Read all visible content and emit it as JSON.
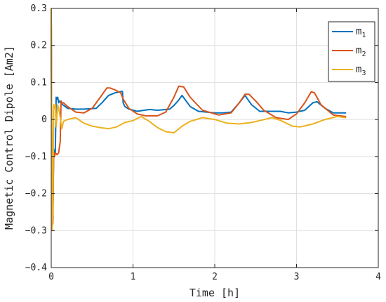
{
  "chart_data": {
    "type": "line",
    "title": "",
    "xlabel": "Time [h]",
    "ylabel": "Magnetic Control Dipole [Am2]",
    "xlim": [
      0,
      4
    ],
    "ylim": [
      -0.4,
      0.3
    ],
    "xticks": [
      "0",
      "1",
      "2",
      "3",
      "4"
    ],
    "yticks": [
      "-0.4",
      "-0.3",
      "-0.2",
      "-0.1",
      "0",
      "0.1",
      "0.2",
      "0.3"
    ],
    "grid": true,
    "legend_position": "top-right",
    "series": [
      {
        "name": "m",
        "subscript": "1",
        "color": "#0072BD",
        "x": [
          0,
          0.01,
          0.02,
          0.03,
          0.04,
          0.05,
          0.06,
          0.07,
          0.08,
          0.09,
          0.1,
          0.12,
          0.14,
          0.17,
          0.2,
          0.3,
          0.4,
          0.55,
          0.62,
          0.7,
          0.78,
          0.86,
          0.87,
          0.88,
          0.9,
          0.95,
          1.05,
          1.2,
          1.3,
          1.45,
          1.5,
          1.55,
          1.6,
          1.7,
          1.8,
          2.0,
          2.1,
          2.2,
          2.3,
          2.37,
          2.45,
          2.55,
          2.7,
          2.8,
          2.9,
          3.0,
          3.1,
          3.2,
          3.25,
          3.35,
          3.45,
          3.6
        ],
        "y": [
          0.28,
          -0.28,
          -0.27,
          -0.08,
          -0.09,
          -0.09,
          0.06,
          0.055,
          0.06,
          0.045,
          0.05,
          0.045,
          0.04,
          0.035,
          0.03,
          0.028,
          0.028,
          0.03,
          0.045,
          0.065,
          0.072,
          0.076,
          0.076,
          0.045,
          0.035,
          0.028,
          0.022,
          0.027,
          0.025,
          0.028,
          0.038,
          0.05,
          0.065,
          0.035,
          0.022,
          0.018,
          0.018,
          0.02,
          0.045,
          0.065,
          0.04,
          0.022,
          0.022,
          0.022,
          0.018,
          0.02,
          0.025,
          0.045,
          0.048,
          0.03,
          0.018,
          0.018
        ]
      },
      {
        "name": "m",
        "subscript": "2",
        "color": "#D95319",
        "x": [
          0,
          0.01,
          0.02,
          0.03,
          0.04,
          0.05,
          0.07,
          0.09,
          0.11,
          0.12,
          0.13,
          0.15,
          0.2,
          0.3,
          0.4,
          0.5,
          0.6,
          0.68,
          0.72,
          0.78,
          0.85,
          0.88,
          0.95,
          1.05,
          1.15,
          1.3,
          1.4,
          1.5,
          1.56,
          1.62,
          1.7,
          1.85,
          2.05,
          2.2,
          2.3,
          2.37,
          2.42,
          2.5,
          2.6,
          2.75,
          2.9,
          3.0,
          3.1,
          3.18,
          3.22,
          3.3,
          3.45,
          3.6
        ],
        "y": [
          0.29,
          -0.29,
          -0.28,
          -0.09,
          -0.1,
          -0.09,
          -0.095,
          -0.09,
          -0.06,
          0.05,
          0.045,
          0.045,
          0.035,
          0.02,
          0.018,
          0.03,
          0.06,
          0.085,
          0.085,
          0.08,
          0.072,
          0.055,
          0.03,
          0.015,
          0.01,
          0.01,
          0.02,
          0.06,
          0.09,
          0.088,
          0.06,
          0.025,
          0.012,
          0.018,
          0.045,
          0.068,
          0.068,
          0.05,
          0.025,
          0.005,
          0.0,
          0.015,
          0.045,
          0.075,
          0.072,
          0.04,
          0.012,
          0.008
        ]
      },
      {
        "name": "m",
        "subscript": "3",
        "color": "#EDB120",
        "x": [
          0,
          0.01,
          0.02,
          0.03,
          0.04,
          0.05,
          0.06,
          0.08,
          0.1,
          0.13,
          0.15,
          0.2,
          0.3,
          0.4,
          0.5,
          0.6,
          0.7,
          0.8,
          0.9,
          1.0,
          1.1,
          1.2,
          1.3,
          1.4,
          1.5,
          1.6,
          1.7,
          1.85,
          2.0,
          2.15,
          2.3,
          2.45,
          2.55,
          2.7,
          2.8,
          2.95,
          3.05,
          3.2,
          3.35,
          3.5,
          3.6
        ],
        "y": [
          0.3,
          -0.3,
          -0.25,
          0.04,
          0.03,
          0.04,
          -0.02,
          0.04,
          0.02,
          -0.025,
          -0.005,
          0.0,
          0.005,
          -0.01,
          -0.018,
          -0.022,
          -0.025,
          -0.02,
          -0.008,
          -0.003,
          0.008,
          -0.005,
          -0.022,
          -0.033,
          -0.036,
          -0.018,
          -0.005,
          0.005,
          0.0,
          -0.01,
          -0.012,
          -0.008,
          -0.003,
          0.005,
          -0.002,
          -0.018,
          -0.02,
          -0.012,
          0.0,
          0.008,
          0.005
        ]
      }
    ]
  }
}
